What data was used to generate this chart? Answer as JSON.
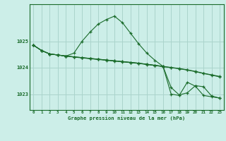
{
  "background_color": "#cceee8",
  "grid_color": "#aad4cc",
  "line_color": "#1a6b2a",
  "title": "Graphe pression niveau de la mer (hPa)",
  "xlim": [
    -0.5,
    23.5
  ],
  "ylim": [
    1022.4,
    1026.4
  ],
  "xticks": [
    0,
    1,
    2,
    3,
    4,
    5,
    6,
    7,
    8,
    9,
    10,
    11,
    12,
    13,
    14,
    15,
    16,
    17,
    18,
    19,
    20,
    21,
    22,
    23
  ],
  "yticks": [
    1023,
    1024,
    1025
  ],
  "series": [
    {
      "x": [
        0,
        1,
        2,
        3,
        4,
        5,
        6,
        7,
        8,
        9,
        10,
        11,
        12,
        13,
        14,
        15,
        16,
        17,
        18,
        19,
        20,
        21,
        22,
        23
      ],
      "y": [
        1024.85,
        1024.65,
        1024.52,
        1024.48,
        1024.44,
        1024.55,
        1025.0,
        1025.35,
        1025.65,
        1025.82,
        1025.95,
        1025.7,
        1025.3,
        1024.9,
        1024.55,
        1024.28,
        1024.05,
        1023.0,
        1022.95,
        1023.45,
        1023.3,
        1022.95,
        1022.9,
        1022.85
      ]
    },
    {
      "x": [
        0,
        1,
        2,
        3,
        4,
        5,
        6,
        7,
        8,
        9,
        10,
        11,
        12,
        13,
        14,
        15,
        16,
        17,
        18,
        19,
        20,
        21,
        22,
        23
      ],
      "y": [
        1024.85,
        1024.65,
        1024.52,
        1024.48,
        1024.44,
        1024.4,
        1024.37,
        1024.34,
        1024.31,
        1024.28,
        1024.25,
        1024.22,
        1024.19,
        1024.16,
        1024.12,
        1024.08,
        1024.04,
        1024.0,
        1023.96,
        1023.91,
        1023.85,
        1023.78,
        1023.72,
        1023.65
      ]
    },
    {
      "x": [
        0,
        1,
        2,
        3,
        4,
        5,
        6,
        7,
        8,
        9,
        10,
        11,
        12,
        13,
        14,
        15,
        16,
        17,
        18,
        19,
        20,
        21,
        22,
        23
      ],
      "y": [
        1024.85,
        1024.65,
        1024.52,
        1024.48,
        1024.44,
        1024.41,
        1024.38,
        1024.35,
        1024.32,
        1024.29,
        1024.26,
        1024.23,
        1024.2,
        1024.17,
        1024.13,
        1024.09,
        1024.05,
        1024.01,
        1023.97,
        1023.92,
        1023.86,
        1023.79,
        1023.73,
        1023.67
      ]
    },
    {
      "x": [
        0,
        1,
        2,
        3,
        4,
        5,
        6,
        7,
        8,
        9,
        10,
        11,
        12,
        13,
        14,
        15,
        16,
        17,
        18,
        19,
        20,
        21,
        22,
        23
      ],
      "y": [
        1024.85,
        1024.65,
        1024.52,
        1024.48,
        1024.44,
        1024.41,
        1024.38,
        1024.35,
        1024.32,
        1024.29,
        1024.26,
        1024.23,
        1024.2,
        1024.17,
        1024.13,
        1024.09,
        1024.05,
        1023.25,
        1022.97,
        1023.05,
        1023.32,
        1023.28,
        1022.93,
        1022.85
      ]
    }
  ]
}
